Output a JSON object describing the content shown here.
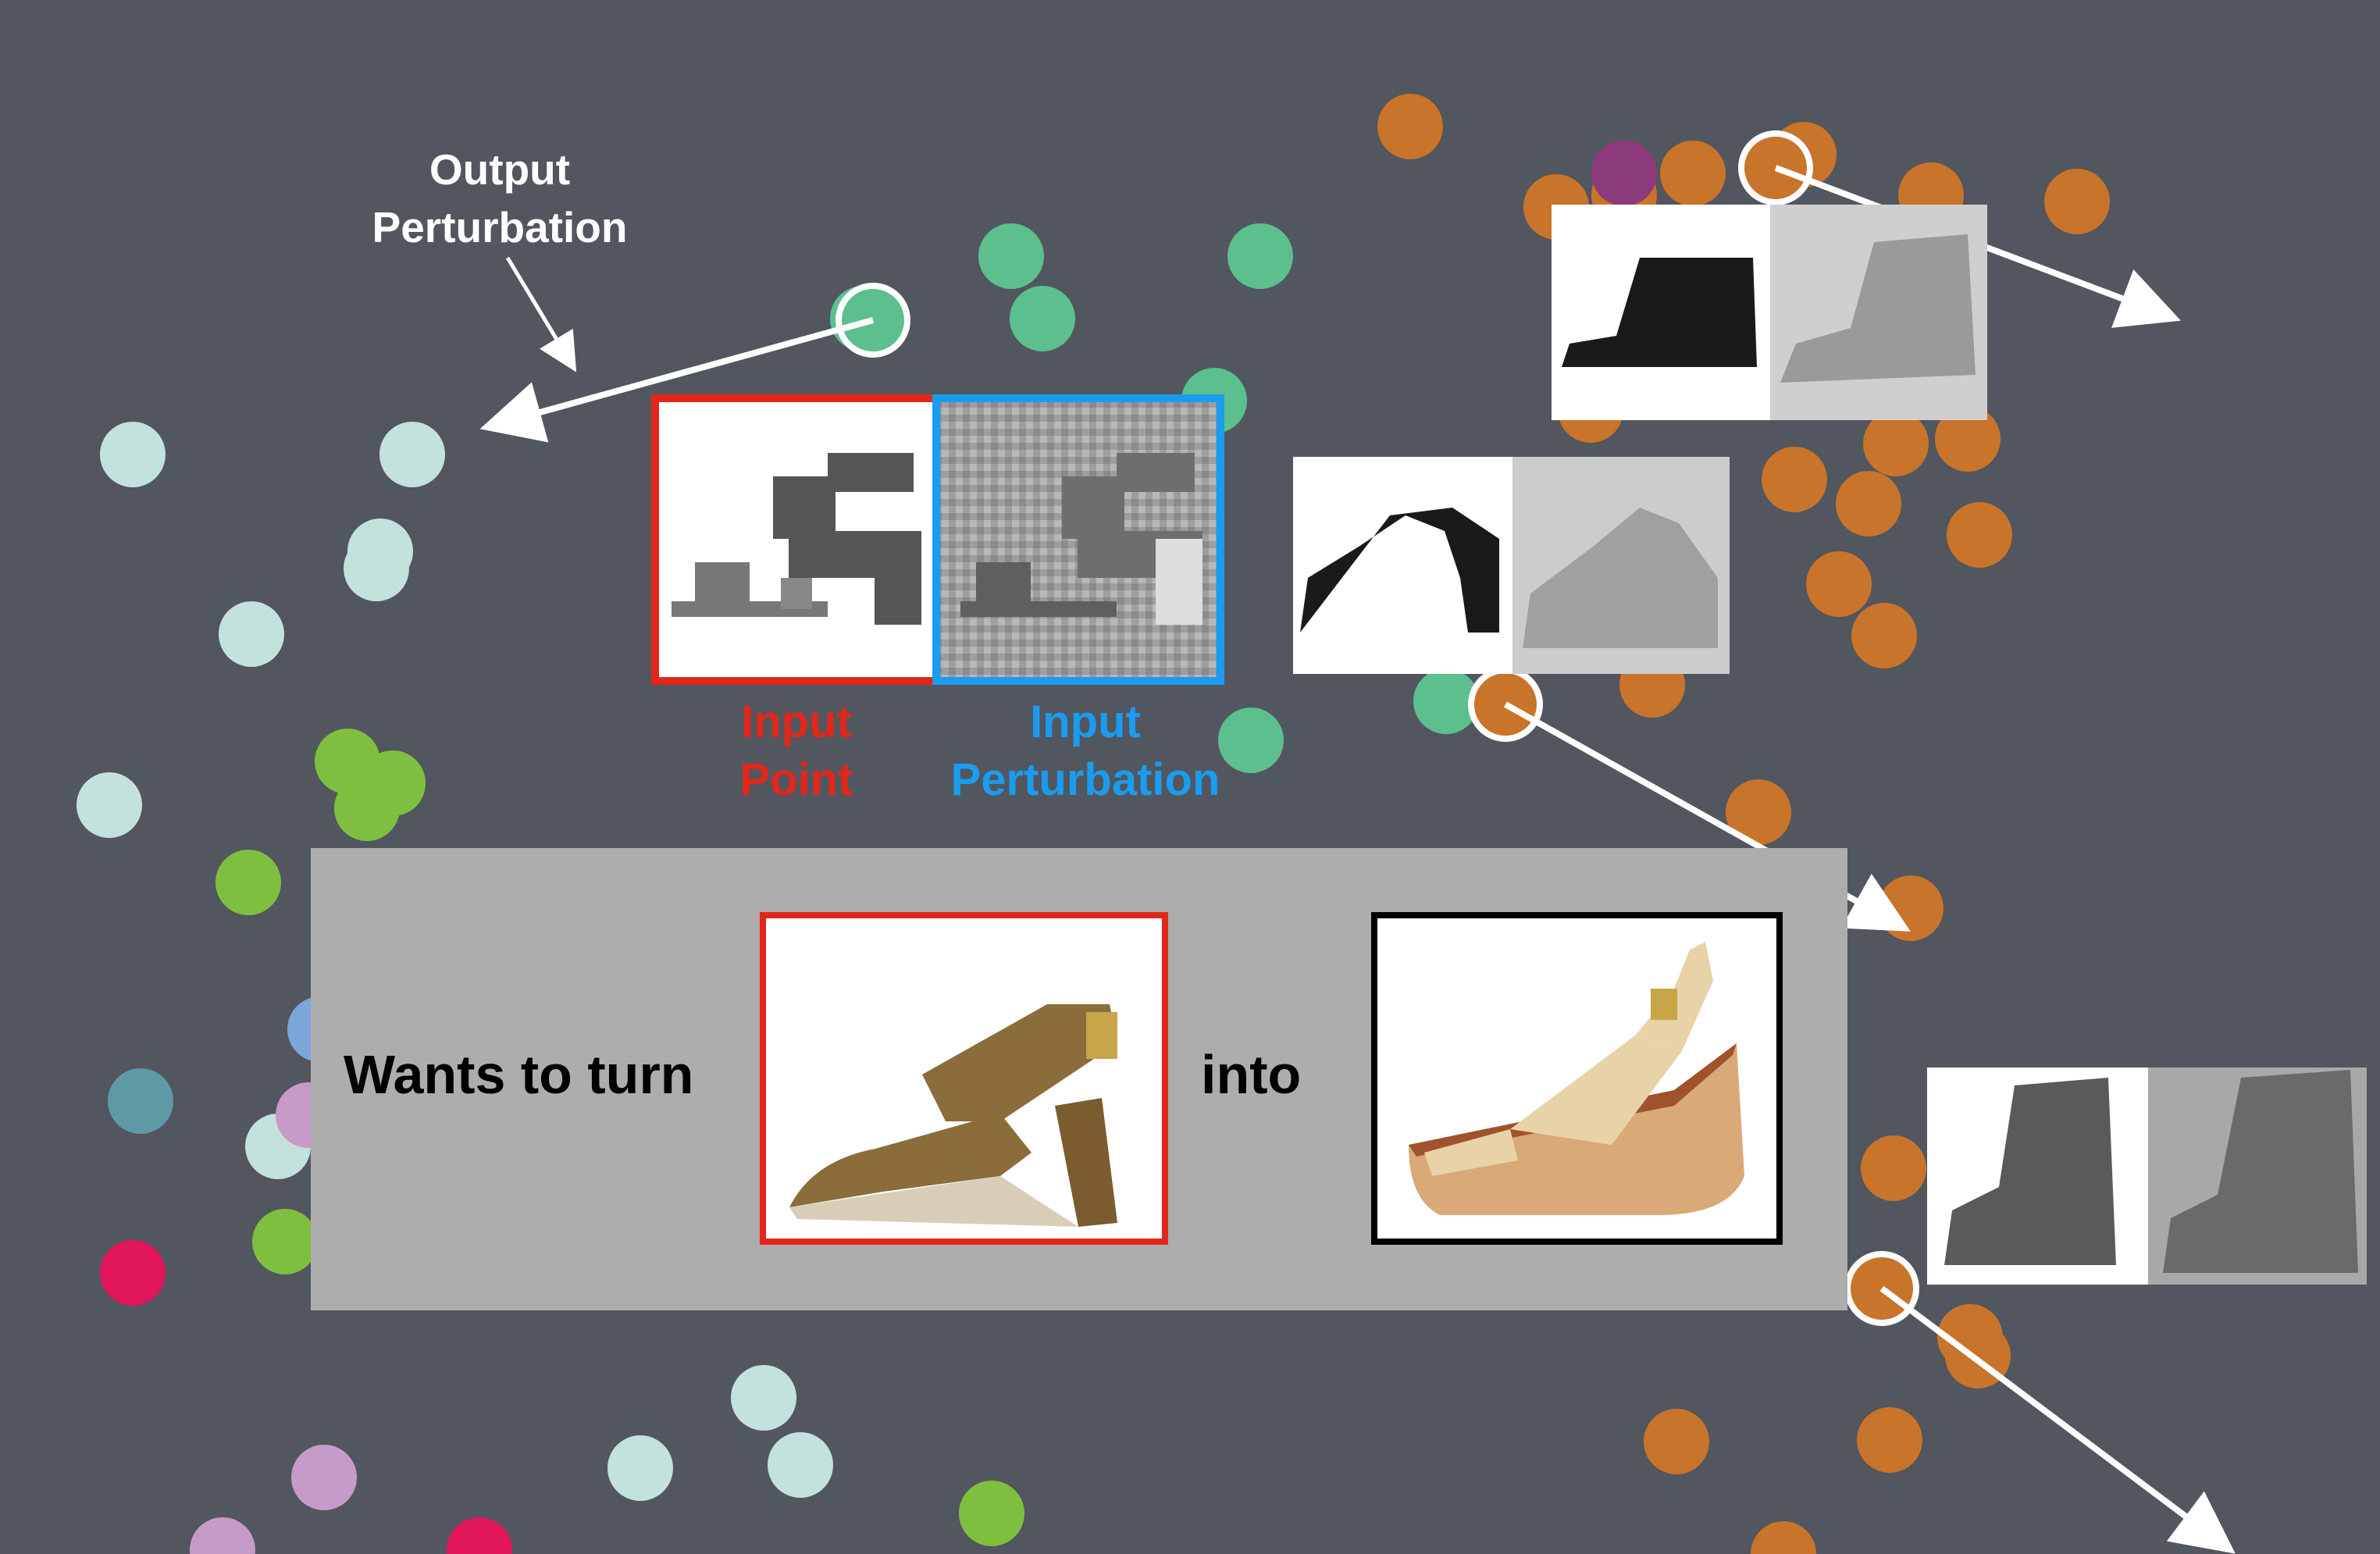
{
  "labels": {
    "output_perturbation": "Output\nPerturbation",
    "input_point": "Input\nPoint",
    "input_perturbation": "Input\nPerturbation"
  },
  "panel": {
    "prefix": "Wants to turn",
    "connector": "into"
  },
  "colors": {
    "background": "#52565f",
    "panel": "#adadad",
    "input_point": "#e3261a",
    "input_perturbation": "#1a9cf0",
    "orange": "#c8742a",
    "green": "#5cbf8e",
    "lightcyan": "#c3e2dc",
    "lime": "#7fbf3f",
    "teal": "#5e9aa6",
    "crimson": "#e0155a",
    "lavender": "#c69ac9",
    "blue": "#7aa6d9",
    "purple": "#8c3a7a"
  }
}
